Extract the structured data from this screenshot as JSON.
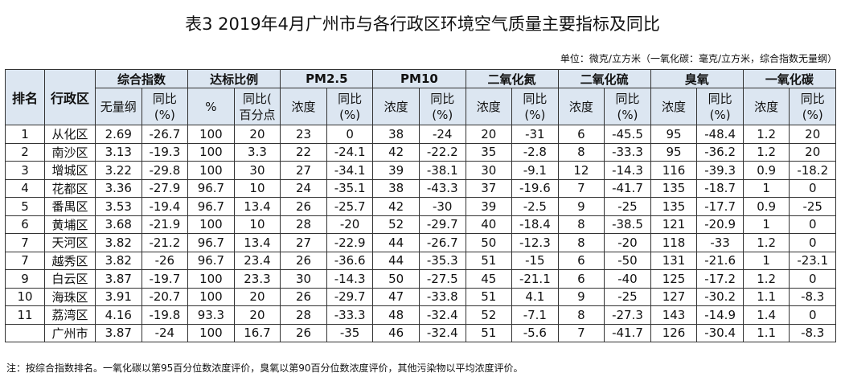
{
  "title": "表3   2019年4月广州市与各行政区环境空气质量主要指标及同比",
  "unit": "单位：微克/立方米（一氧化碳：毫克/立方米，综合指数无量纲）",
  "header": {
    "rank": "排名",
    "district": "行政区",
    "groups": [
      "综合指数",
      "达标比例",
      "PM2.5",
      "PM10",
      "二氧化氮",
      "二氧化硫",
      "臭氧",
      "一氧化碳"
    ],
    "subheaders": [
      "无量纲",
      "同比\n(%)",
      "%",
      "同比(\n百分点",
      "浓度",
      "同比\n(%)",
      "浓度",
      "同比\n(%)",
      "浓度",
      "同比\n(%)",
      "浓度",
      "同比\n(%)",
      "浓度",
      "同比\n(%)",
      "浓度",
      "同比\n(%)"
    ]
  },
  "rows": [
    [
      "1",
      "从化区",
      "2.69",
      "-26.7",
      "100",
      "20",
      "23",
      "0",
      "38",
      "-24",
      "20",
      "-31",
      "6",
      "-45.5",
      "95",
      "-48.4",
      "1.2",
      "20"
    ],
    [
      "2",
      "南沙区",
      "3.13",
      "-19.3",
      "100",
      "3.3",
      "22",
      "-24.1",
      "42",
      "-22.2",
      "35",
      "-2.8",
      "8",
      "-33.3",
      "95",
      "-36.2",
      "1.2",
      "20"
    ],
    [
      "3",
      "增城区",
      "3.22",
      "-29.8",
      "100",
      "30",
      "27",
      "-34.1",
      "39",
      "-38.1",
      "30",
      "-9.1",
      "12",
      "-14.3",
      "116",
      "-39.3",
      "0.9",
      "-18.2"
    ],
    [
      "4",
      "花都区",
      "3.36",
      "-27.9",
      "96.7",
      "10",
      "24",
      "-35.1",
      "38",
      "-43.3",
      "37",
      "-19.6",
      "7",
      "-41.7",
      "135",
      "-18.7",
      "1",
      "0"
    ],
    [
      "5",
      "番禺区",
      "3.53",
      "-19.4",
      "96.7",
      "13.4",
      "26",
      "-25.7",
      "42",
      "-30",
      "39",
      "-2.5",
      "9",
      "-25",
      "135",
      "-17.7",
      "0.9",
      "-25"
    ],
    [
      "6",
      "黄埔区",
      "3.68",
      "-21.9",
      "100",
      "10",
      "28",
      "-20",
      "52",
      "-29.7",
      "40",
      "-18.4",
      "8",
      "-38.5",
      "121",
      "-20.9",
      "1",
      "0"
    ],
    [
      "7",
      "天河区",
      "3.82",
      "-21.2",
      "96.7",
      "13.4",
      "27",
      "-22.9",
      "44",
      "-26.7",
      "50",
      "-12.3",
      "8",
      "-20",
      "118",
      "-33",
      "1.2",
      "0"
    ],
    [
      "7",
      "越秀区",
      "3.82",
      "-26",
      "96.7",
      "23.4",
      "26",
      "-36.6",
      "44",
      "-35.3",
      "51",
      "-15",
      "6",
      "-50",
      "131",
      "-21.6",
      "1",
      "-23.1"
    ],
    [
      "9",
      "白云区",
      "3.87",
      "-19.7",
      "100",
      "23.3",
      "30",
      "-14.3",
      "50",
      "-27.5",
      "45",
      "-21.1",
      "6",
      "-40",
      "125",
      "-17.2",
      "1.2",
      "0"
    ],
    [
      "10",
      "海珠区",
      "3.91",
      "-20.7",
      "100",
      "20",
      "26",
      "-29.7",
      "47",
      "-33.8",
      "51",
      "4.1",
      "9",
      "-25",
      "127",
      "-30.2",
      "1.1",
      "-8.3"
    ],
    [
      "11",
      "荔湾区",
      "4.16",
      "-19.8",
      "93.3",
      "20",
      "28",
      "-33.3",
      "48",
      "-32.4",
      "52",
      "-7.1",
      "8",
      "-27.3",
      "143",
      "-14.9",
      "1.4",
      "0"
    ],
    [
      "",
      "广州市",
      "3.87",
      "-24",
      "100",
      "16.7",
      "26",
      "-35",
      "46",
      "-32.4",
      "51",
      "-5.6",
      "7",
      "-41.7",
      "126",
      "-30.4",
      "1.1",
      "-8.3"
    ]
  ],
  "note": "注：按综合指数排名。一氧化碳以第95百分位数浓度评价，臭氧以第90百分位数浓度评价，其他污染物以平均浓度评价。"
}
